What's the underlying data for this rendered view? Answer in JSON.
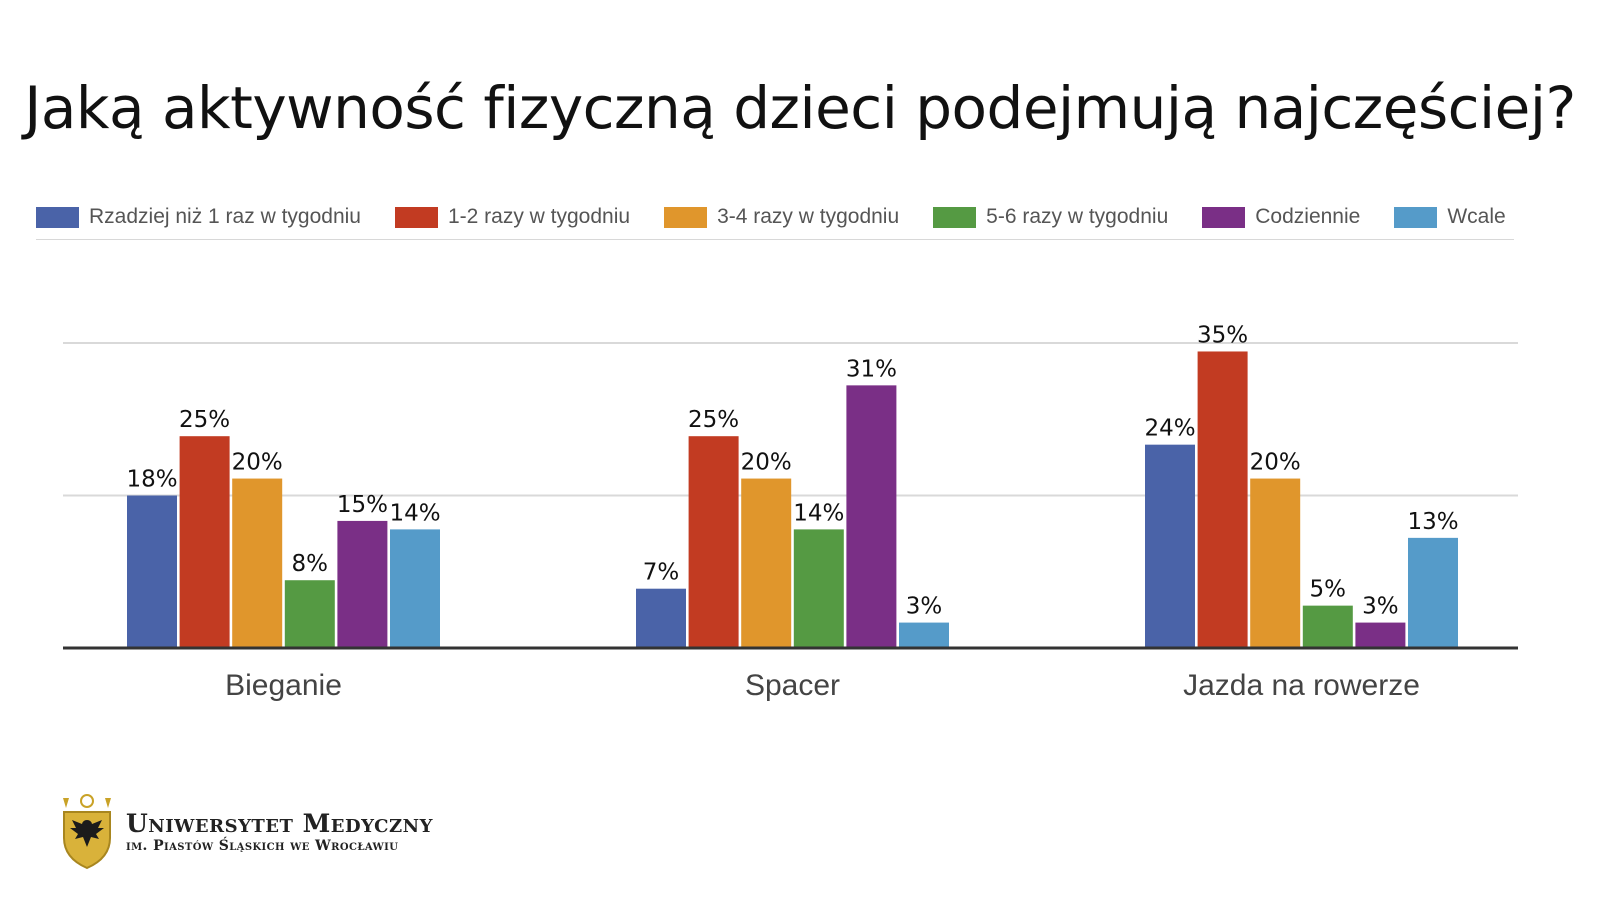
{
  "title": "Jaką aktywność fizyczną dzieci podejmują najczęściej?",
  "chart_data": {
    "type": "bar",
    "categories": [
      "Bieganie",
      "Spacer",
      "Jazda na rowerze"
    ],
    "series": [
      {
        "name": "Rzadziej niż 1 raz w tygodniu",
        "color": "#4a63a8",
        "values": [
          18,
          7,
          24
        ],
        "labels": [
          "18%",
          "7%",
          "24%"
        ]
      },
      {
        "name": "1-2 razy w tygodniu",
        "color": "#c23b22",
        "values": [
          25,
          25,
          35
        ],
        "labels": [
          "25%",
          "25%",
          "35%"
        ]
      },
      {
        "name": "3-4 razy w tygodniu",
        "color": "#e0962c",
        "values": [
          20,
          20,
          20
        ],
        "labels": [
          "20%",
          "20%",
          "20%"
        ]
      },
      {
        "name": "5-6 razy w tygodniu",
        "color": "#559a43",
        "values": [
          8,
          14,
          5
        ],
        "labels": [
          "8%",
          "14%",
          "5%"
        ]
      },
      {
        "name": "Codziennie",
        "color": "#7a2f86",
        "values": [
          15,
          31,
          3
        ],
        "labels": [
          "15%",
          "31%",
          "3%"
        ]
      },
      {
        "name": "Wcale",
        "color": "#559bc9",
        "values": [
          14,
          3,
          13
        ],
        "labels": [
          "14%",
          "3%",
          "13%"
        ]
      }
    ],
    "ylim": [
      0,
      36
    ],
    "gridlines": [
      0,
      18,
      36
    ],
    "legend_position": "top",
    "grid": true
  },
  "footer": {
    "logo_line1": "Uniwersytet Medyczny",
    "logo_line2": "im. Piastów Śląskich we Wrocławiu",
    "logo_icon": "eagle-crest-icon"
  }
}
